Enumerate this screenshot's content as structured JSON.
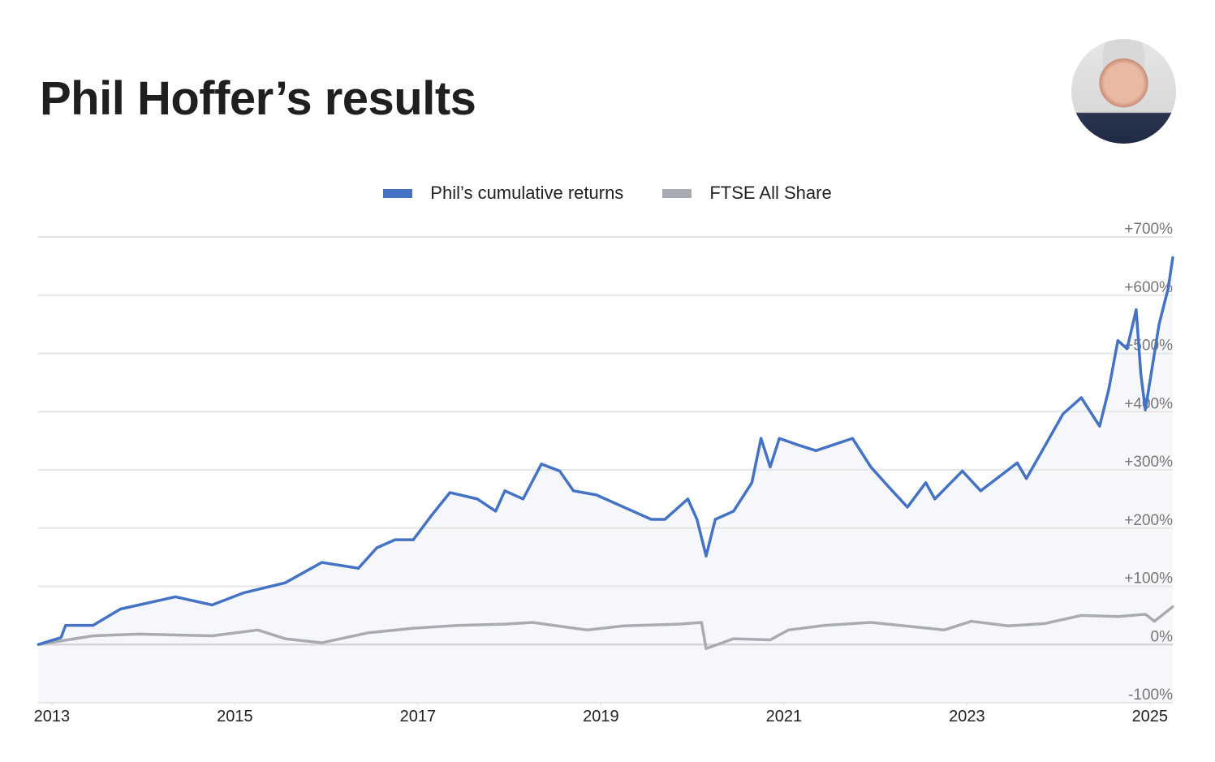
{
  "title": "Phil Hoffer’s results",
  "avatar": {
    "alt": "Phil Hoffer"
  },
  "colors": {
    "phil": "#4472c4",
    "ftse": "#a9abb2",
    "fill": "#f6f7fb",
    "grid": "#e6e6e6"
  },
  "chart_data": {
    "type": "line",
    "title": "",
    "xlabel": "",
    "ylabel": "",
    "xlim": [
      2012.9,
      2025.3
    ],
    "ylim": [
      -100,
      700
    ],
    "grid": true,
    "legend": "top-center",
    "x_ticks": [
      "2013",
      "2015",
      "2017",
      "2019",
      "2021",
      "2023",
      "2025"
    ],
    "y_ticks": [
      "+700%",
      "+600%",
      "+500%",
      "+400%",
      "+300%",
      "+200%",
      "+100%",
      "0%",
      "-100%"
    ],
    "series": [
      {
        "name": "Phil’s cumulative returns",
        "x": [
          2012.9,
          2013.15,
          2013.2,
          2013.5,
          2013.8,
          2014.4,
          2014.8,
          2015.15,
          2015.6,
          2016.0,
          2016.4,
          2016.6,
          2016.8,
          2017.0,
          2017.2,
          2017.4,
          2017.7,
          2017.9,
          2018.0,
          2018.2,
          2018.4,
          2018.6,
          2018.75,
          2019.0,
          2019.3,
          2019.6,
          2019.75,
          2020.0,
          2020.1,
          2020.2,
          2020.3,
          2020.5,
          2020.7,
          2020.8,
          2020.9,
          2021.0,
          2021.2,
          2021.4,
          2021.8,
          2022.0,
          2022.2,
          2022.4,
          2022.6,
          2022.7,
          2023.0,
          2023.2,
          2023.6,
          2023.7,
          2024.1,
          2024.3,
          2024.5,
          2024.6,
          2024.7,
          2024.8,
          2024.9,
          2024.95,
          2025.0,
          2025.15,
          2025.25,
          2025.3
        ],
        "y": [
          0,
          12,
          33,
          33,
          61,
          82,
          68,
          89,
          106,
          141,
          131,
          166,
          180,
          180,
          222,
          261,
          250,
          229,
          264,
          250,
          310,
          298,
          264,
          257,
          236,
          215,
          215,
          250,
          215,
          152,
          215,
          229,
          278,
          354,
          305,
          354,
          343,
          333,
          354,
          305,
          270,
          236,
          278,
          250,
          298,
          264,
          312,
          285,
          396,
          424,
          375,
          438,
          522,
          508,
          575,
          466,
          403,
          550,
          612,
          665
        ]
      },
      {
        "name": "FTSE All Share",
        "x": [
          2012.9,
          2013.5,
          2014.0,
          2014.8,
          2015.3,
          2015.6,
          2016.0,
          2016.5,
          2017.0,
          2017.5,
          2018.0,
          2018.3,
          2018.9,
          2019.3,
          2019.9,
          2020.15,
          2020.2,
          2020.5,
          2020.9,
          2021.1,
          2021.5,
          2022.0,
          2022.5,
          2022.8,
          2023.1,
          2023.5,
          2023.9,
          2024.3,
          2024.7,
          2025.0,
          2025.1,
          2025.3
        ],
        "y": [
          0,
          15,
          18,
          15,
          25,
          10,
          3,
          20,
          28,
          33,
          35,
          38,
          25,
          32,
          35,
          38,
          -7,
          10,
          8,
          25,
          33,
          38,
          30,
          25,
          40,
          32,
          36,
          50,
          48,
          52,
          40,
          65
        ]
      }
    ]
  }
}
